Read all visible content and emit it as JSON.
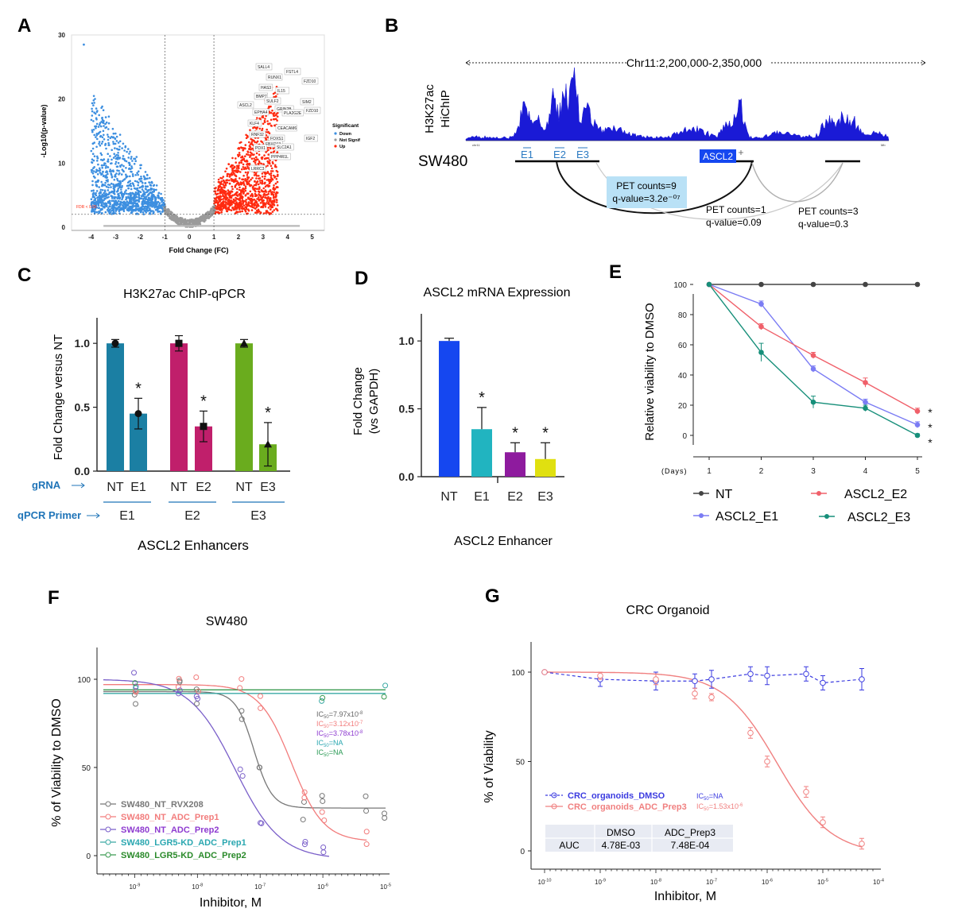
{
  "panel_labels": [
    "A",
    "B",
    "C",
    "D",
    "E",
    "F",
    "G"
  ],
  "colors": {
    "down": "#3d8fe0",
    "not_signif": "#9a9a9a",
    "up": "#ff2a10",
    "track": "#1a1ad6",
    "NT": "#1b7fa3",
    "E1": "#1b7fa3",
    "E2": "#c01f6b",
    "E3": "#6aac1e",
    "blue": "#1547f0",
    "teal": "#21b4c0",
    "purple": "#8e1b9e",
    "yellow": "#e0e010"
  },
  "chart_data": [
    {
      "id": "A",
      "type": "scatter",
      "title": "",
      "xlabel": "Fold Change (FC)",
      "ylabel": "-Log10(p-value)",
      "xlim": [
        -4.8,
        5.5
      ],
      "ylim": [
        -0.5,
        30
      ],
      "xticks": [
        "-4",
        "-3",
        "-2",
        "-1",
        "0",
        "1",
        "2",
        "3",
        "4",
        "5"
      ],
      "yticks": [
        "0",
        "10",
        "20",
        "30"
      ],
      "fc_thresholds": [
        -1,
        1
      ],
      "fdr_label": "FDR < 0.05",
      "fdr_y": 2,
      "legend_title": "Significant",
      "legend": [
        "Down",
        "Not Signif",
        "Up"
      ],
      "genes": [
        "SALL4",
        "FSTL4",
        "RUNX1",
        "FZD10",
        "HAS3",
        "IL15",
        "BMP7",
        "SULF2",
        "SIM2",
        "ASCL2",
        "GRIN2B",
        "FZD10",
        "EPHA4",
        "PLA2G2E",
        "KLF4",
        "CEACAM6",
        "RNF32",
        "FOXS1",
        "IGF2",
        "FBXO13",
        "PDX1",
        "SLC2A1",
        "PPP4R1L",
        "LRRC3"
      ]
    },
    {
      "id": "B",
      "type": "area",
      "region": "Chr11:2,200,000-2,350,000",
      "track_label_1": "H3K27ac",
      "track_label_2": "HiChIP",
      "axis_left": "chr11",
      "axis_right": "Mb",
      "cell_line": "SW480",
      "enhancers": [
        "E1",
        "E2",
        "E3"
      ],
      "gene": "ASCL2",
      "loops": [
        {
          "pet": "PET counts=9",
          "q": "q-value=3.2e⁻⁰⁷"
        },
        {
          "pet": "PET counts=1",
          "q": "q-value=0.09"
        },
        {
          "pet": "PET counts=3",
          "q": "q-value=0.3"
        }
      ]
    },
    {
      "id": "C",
      "type": "bar",
      "title": "H3K27ac ChIP-qPCR",
      "ylabel": "Fold Change versus NT",
      "xlabel": "ASCL2 Enhancers",
      "ylim": [
        0,
        1.2
      ],
      "yticks": [
        "0.0",
        "0.5",
        "1.0"
      ],
      "gRNA_label": "gRNA",
      "primer_label": "qPCR Primer",
      "categories": [
        "NT",
        "E1",
        "NT",
        "E2",
        "NT",
        "E3"
      ],
      "groups": [
        "E1",
        "E2",
        "E3"
      ],
      "values": [
        1.0,
        0.45,
        1.0,
        0.35,
        1.0,
        0.21
      ],
      "errors": [
        0.03,
        0.12,
        0.06,
        0.12,
        0.03,
        0.17
      ],
      "star": "*"
    },
    {
      "id": "D",
      "type": "bar",
      "title": "ASCL2 mRNA Expression",
      "ylabel_1": "Fold Change",
      "ylabel_2": "(vs GAPDH)",
      "xlabel": "ASCL2 Enhancer",
      "ylim": [
        0,
        1.2
      ],
      "yticks": [
        "0.0",
        "0.5",
        "1.0"
      ],
      "categories": [
        "NT",
        "E1",
        "E2",
        "E3"
      ],
      "values": [
        1.0,
        0.35,
        0.18,
        0.13
      ],
      "errors": [
        0.02,
        0.16,
        0.07,
        0.12
      ],
      "star": "*"
    },
    {
      "id": "E",
      "type": "line",
      "ylabel": "Relative viability to DMSO",
      "xlabel": "(Days)",
      "x": [
        1,
        2,
        3,
        4,
        5
      ],
      "ylim": [
        0,
        100
      ],
      "yticks": [
        "0",
        "20",
        "40",
        "60",
        "80",
        "100"
      ],
      "xticks": [
        "1",
        "2",
        "3",
        "4",
        "5"
      ],
      "series": [
        {
          "name": "NT",
          "values": [
            100,
            100,
            100,
            100,
            100
          ]
        },
        {
          "name": "ASCL2_E1",
          "values": [
            100,
            87,
            44,
            22,
            7
          ]
        },
        {
          "name": "ASCL2_E2",
          "values": [
            100,
            72,
            53,
            35,
            16
          ]
        },
        {
          "name": "ASCL2_E3",
          "values": [
            100,
            55,
            22,
            18,
            0
          ]
        }
      ],
      "star": "*"
    },
    {
      "id": "F",
      "type": "scatter",
      "title": "SW480",
      "ylabel": "% of Viability to DMSO",
      "xlabel": "Inhibitor, M",
      "xlim_log": [
        -9.5,
        -5
      ],
      "yticks": [
        "0",
        "50",
        "100"
      ],
      "xtick_base": "10",
      "xtick_exps": [
        "-9",
        "-8",
        "-7",
        "-6",
        "-5"
      ],
      "ic50": [
        {
          "label": "IC",
          "sub": "50",
          "val": "=7.97x10",
          "sup": "-8"
        },
        {
          "label": "IC",
          "sub": "50",
          "val": "=3.12x10",
          "sup": "-7"
        },
        {
          "label": "IC",
          "sub": "50",
          "val": "=3.78x10",
          "sup": "-8"
        },
        {
          "label": "IC",
          "sub": "50",
          "val": "=NA",
          "sup": ""
        },
        {
          "label": "IC",
          "sub": "50",
          "val": "=NA",
          "sup": ""
        }
      ],
      "series": [
        {
          "name": "SW480_NT_RVX208",
          "top": 93,
          "bottom": 27,
          "logic50": -7.1,
          "hill": 3.0
        },
        {
          "name": "SW480_NT_ADC_Prep1",
          "top": 97,
          "bottom": 8,
          "logic50": -6.5,
          "hill": 1.7
        },
        {
          "name": "SW480_NT_ADC_Prep2",
          "top": 100,
          "bottom": -2,
          "logic50": -7.4,
          "hill": 1.2
        },
        {
          "name": "SW480_LGR5-KD_ADC_Prep1",
          "top": 92,
          "bottom": 92,
          "logic50": -7,
          "hill": 1
        },
        {
          "name": "SW480_LGR5-KD_ADC_Prep2",
          "top": 94,
          "bottom": 94,
          "logic50": -7,
          "hill": 1
        }
      ]
    },
    {
      "id": "G",
      "type": "scatter",
      "title": "CRC Organoid",
      "ylabel": "% of Viability",
      "xlabel": "Inhibitor, M",
      "yticks": [
        "0",
        "50",
        "100"
      ],
      "xtick_base": "10",
      "xtick_exps": [
        "-10",
        "-9",
        "-8",
        "-7",
        "-6",
        "-5",
        "-4"
      ],
      "series": [
        {
          "name": "CRC_organoids_DMSO",
          "x": [
            -10,
            -9,
            -8,
            -7.3,
            -7,
            -6.3,
            -6,
            -5.3,
            -5,
            -4.3
          ],
          "values": [
            100,
            96,
            95,
            95,
            96,
            99,
            98,
            99,
            94,
            96
          ]
        },
        {
          "name": "CRC_organoids_ADC_Prep3",
          "x": [
            -10,
            -9,
            -8,
            -7.3,
            -7,
            -6.3,
            -6,
            -5.3,
            -5,
            -4.3
          ],
          "values": [
            100,
            98,
            96,
            88,
            86,
            66,
            50,
            33,
            16,
            4
          ]
        }
      ],
      "ic50": [
        {
          "label": "IC",
          "sub": "50",
          "val": "=NA",
          "sup": ""
        },
        {
          "label": "IC",
          "sub": "50",
          "val": "=1.53x10",
          "sup": "-6"
        }
      ],
      "auc_table": {
        "header": [
          "",
          "DMSO",
          "ADC_Prep3"
        ],
        "row": [
          "AUC",
          "4.78E-03",
          "7.48E-04"
        ]
      }
    }
  ]
}
